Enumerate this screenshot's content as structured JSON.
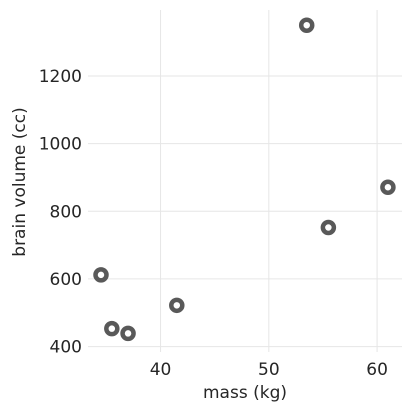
{
  "chart_data": {
    "type": "scatter",
    "title": "",
    "xlabel": "mass (kg)",
    "ylabel": "brain volume (cc)",
    "xlim": [
      33.3,
      62.3
    ],
    "ylim": [
      384,
      1395
    ],
    "xticks": [
      40,
      50,
      60
    ],
    "xtick_labels": [
      "40",
      "50",
      "60"
    ],
    "yticks": [
      400,
      600,
      800,
      1000,
      1200
    ],
    "ytick_labels": [
      "400",
      "600",
      "800",
      "1000",
      "1200"
    ],
    "grid": true,
    "points": [
      {
        "x": 34.5,
        "y": 612
      },
      {
        "x": 35.5,
        "y": 453
      },
      {
        "x": 37.0,
        "y": 439
      },
      {
        "x": 41.5,
        "y": 522
      },
      {
        "x": 53.5,
        "y": 1350
      },
      {
        "x": 55.5,
        "y": 752
      },
      {
        "x": 61.0,
        "y": 871
      }
    ],
    "marker": "hollow-circle",
    "marker_color": "#595959"
  }
}
